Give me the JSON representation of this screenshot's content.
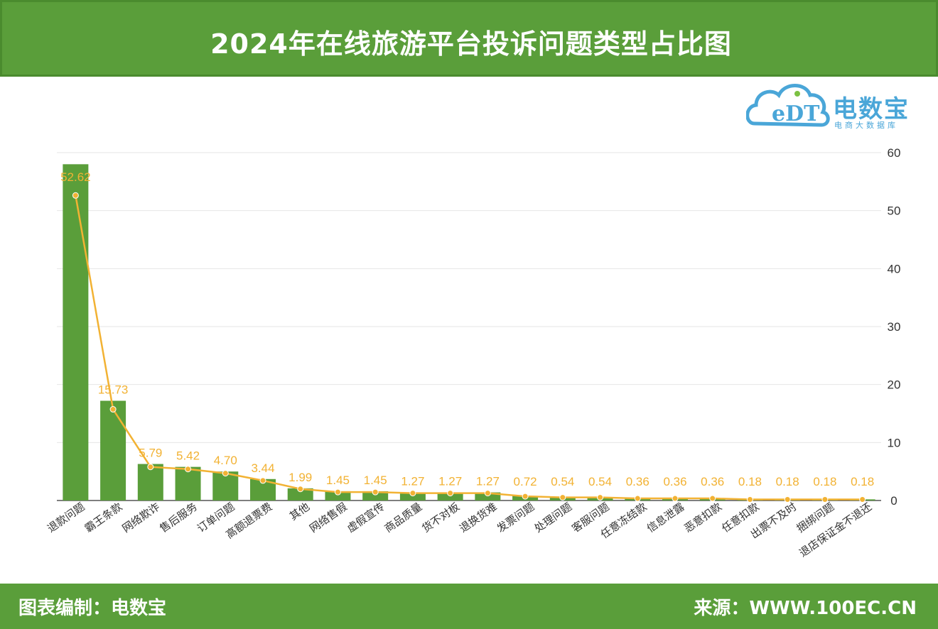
{
  "header": {
    "title": "2024年在线旅游平台投诉问题类型占比图"
  },
  "logo": {
    "name": "电数宝",
    "mark": "eDT",
    "tagline": "电商大数据库"
  },
  "footer": {
    "left": "图表编制：电数宝",
    "right": "来源：WWW.100EC.CN"
  },
  "colors": {
    "bar": "#5a9e3a",
    "line": "#f2b233",
    "header": "#5a9e3a",
    "logo": "#4aa6d8"
  },
  "chart_data": {
    "type": "bar",
    "categories": [
      "退款问题",
      "霸王条款",
      "网络欺诈",
      "售后服务",
      "订单问题",
      "高额退票费",
      "其他",
      "网络售假",
      "虚假宣传",
      "商品质量",
      "货不对板",
      "退换货难",
      "发票问题",
      "处理问题",
      "客服问题",
      "任意冻结款",
      "信息泄露",
      "恶意扣款",
      "任意扣款",
      "出票不及时",
      "捆绑问题",
      "退店保证金不退还"
    ],
    "values": [
      52.62,
      15.73,
      5.79,
      5.42,
      4.7,
      3.44,
      1.99,
      1.45,
      1.45,
      1.27,
      1.27,
      1.27,
      0.72,
      0.54,
      0.54,
      0.36,
      0.36,
      0.36,
      0.18,
      0.18,
      0.18,
      0.18
    ],
    "value_labels": [
      "52.62",
      "15.73",
      "5.79",
      "5.42",
      "4.70",
      "3.44",
      "1.99",
      "1.45",
      "1.45",
      "1.27",
      "1.27",
      "1.27",
      "0.72",
      "0.54",
      "0.54",
      "0.36",
      "0.36",
      "0.36",
      "0.18",
      "0.18",
      "0.18",
      "0.18"
    ],
    "bar_values": [
      58,
      17.2,
      6.3,
      5.8,
      5.0,
      3.7,
      2.1,
      1.6,
      1.6,
      1.4,
      1.4,
      1.4,
      0.8,
      0.6,
      0.6,
      0.4,
      0.4,
      0.4,
      0.2,
      0.2,
      0.2,
      0.2
    ],
    "ylim": [
      0,
      60
    ],
    "yticks": [
      "0",
      "10",
      "20",
      "30",
      "40",
      "50",
      "60"
    ],
    "y_axis_position": "right",
    "grid": true,
    "overlay": "line with markers and value labels"
  }
}
